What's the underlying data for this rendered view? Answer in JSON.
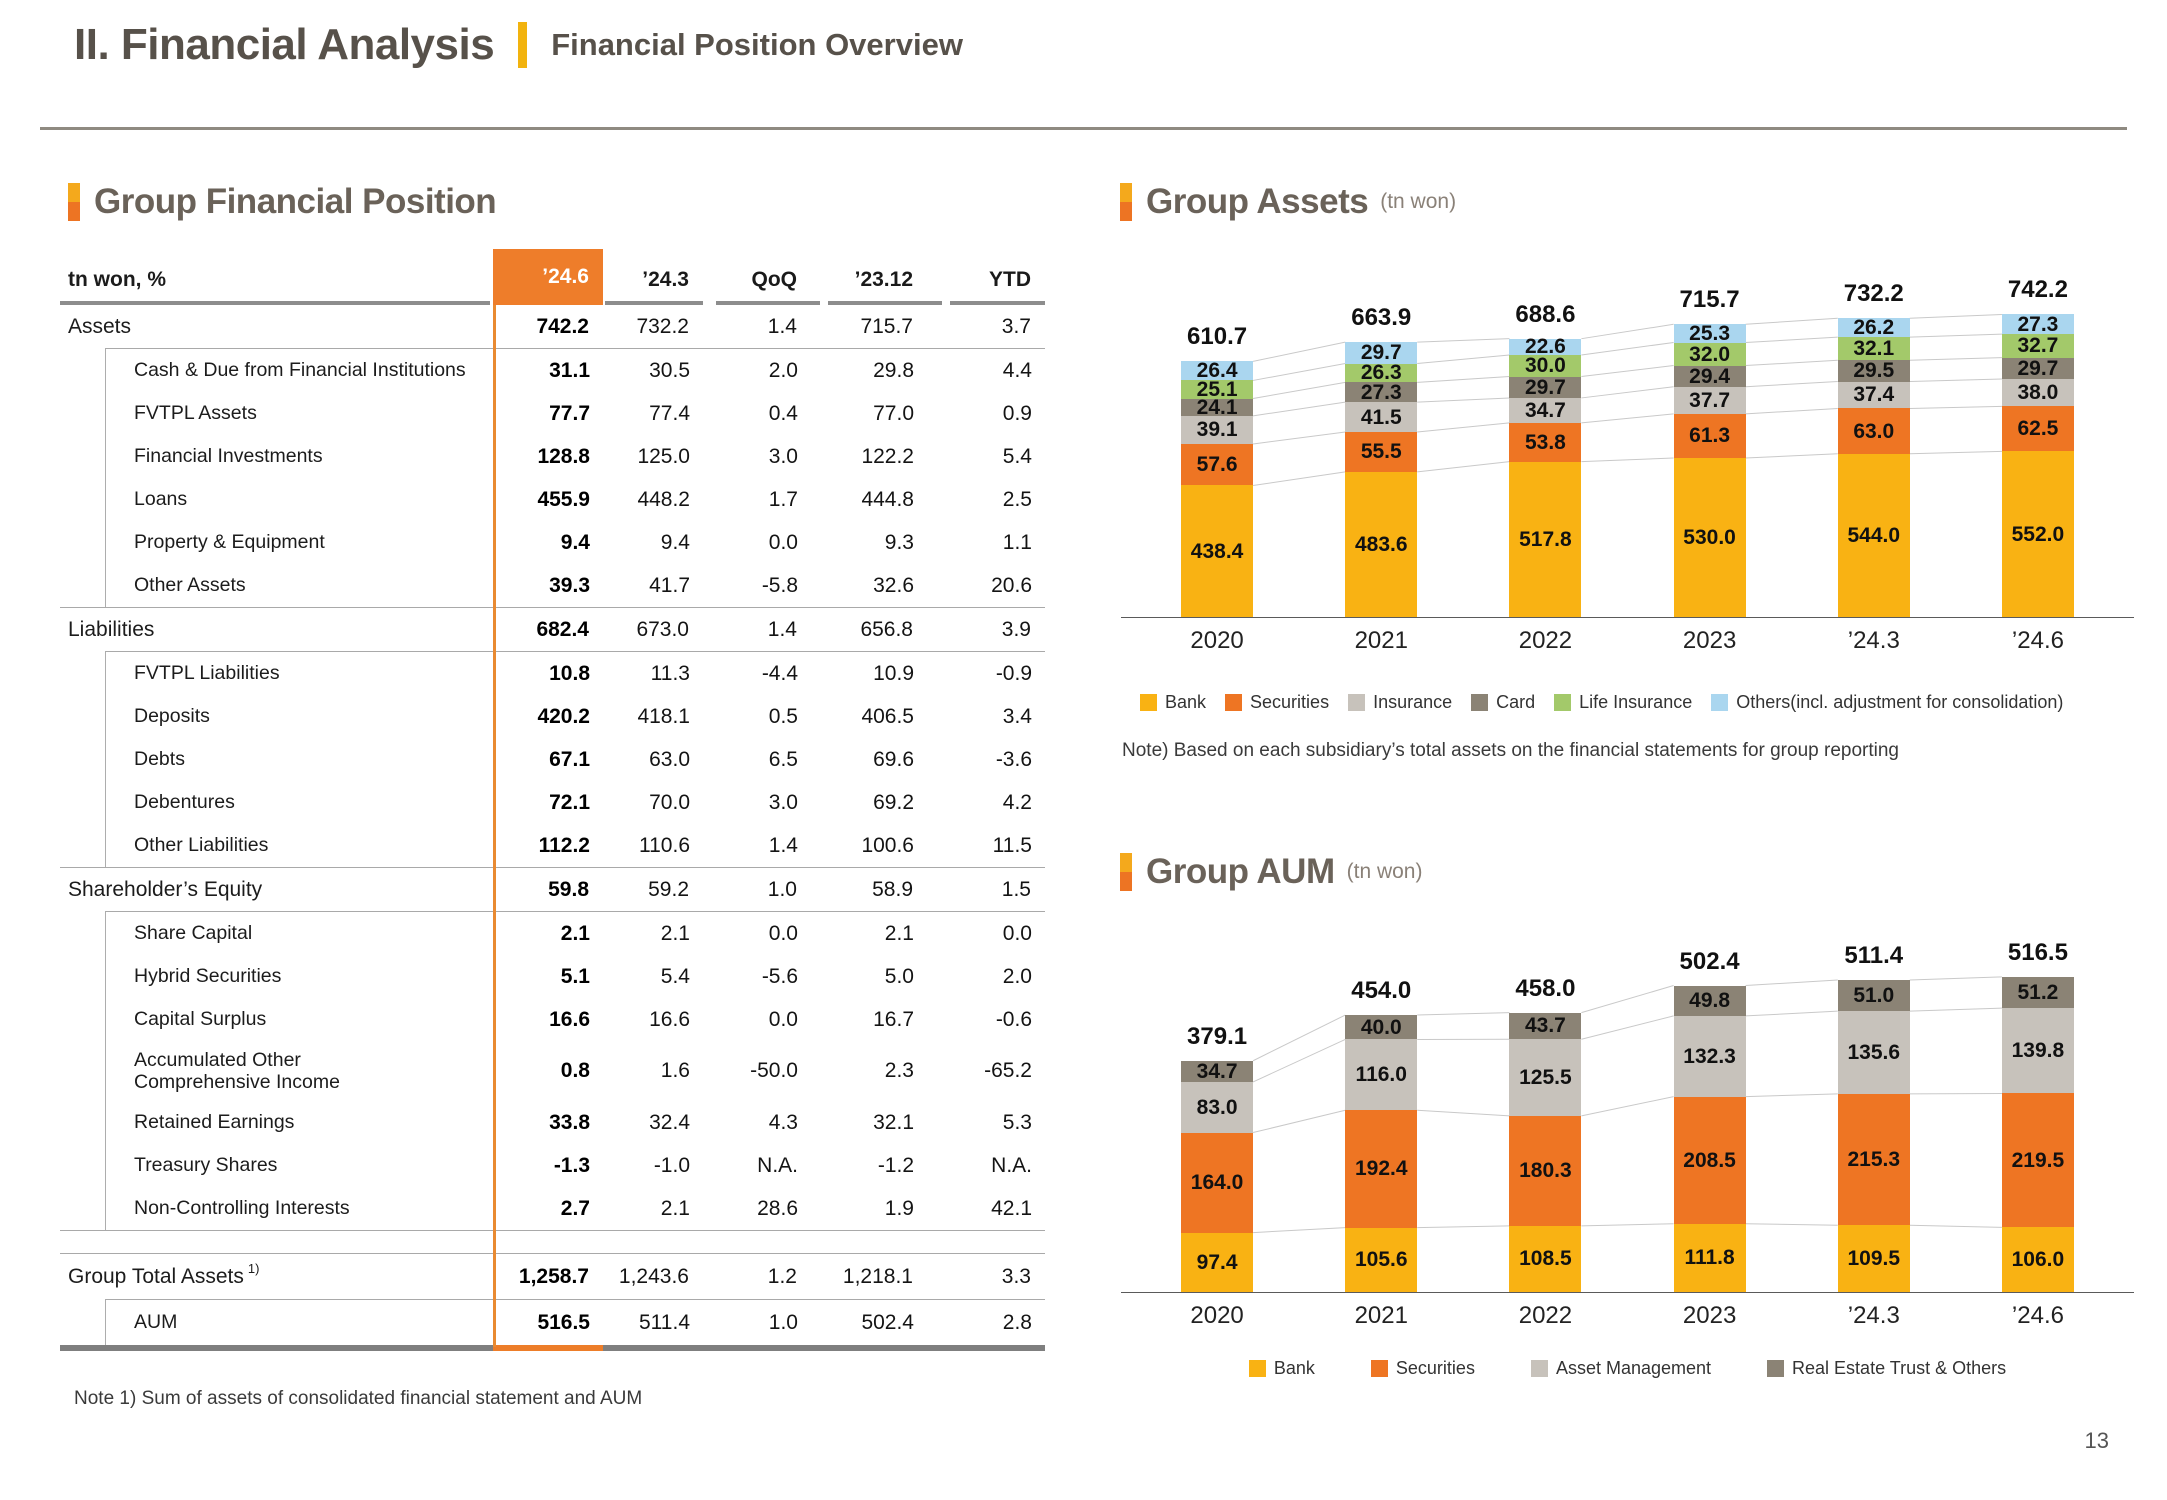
{
  "page": {
    "number": "13"
  },
  "header": {
    "title": "II. Financial Analysis",
    "subtitle": "Financial Position Overview"
  },
  "financial_position": {
    "title": "Group Financial Position",
    "unit_label": "tn won, %",
    "columns": [
      "’24.6",
      "’24.3",
      "QoQ",
      "’23.12",
      "YTD"
    ],
    "sections": [
      {
        "header": {
          "label": "Assets",
          "values": [
            "742.2",
            "732.2",
            "1.4",
            "715.7",
            "3.7"
          ]
        },
        "items": [
          {
            "label": "Cash & Due from Financial Institutions",
            "values": [
              "31.1",
              "30.5",
              "2.0",
              "29.8",
              "4.4"
            ]
          },
          {
            "label": "FVTPL Assets",
            "values": [
              "77.7",
              "77.4",
              "0.4",
              "77.0",
              "0.9"
            ]
          },
          {
            "label": "Financial Investments",
            "values": [
              "128.8",
              "125.0",
              "3.0",
              "122.2",
              "5.4"
            ]
          },
          {
            "label": "Loans",
            "values": [
              "455.9",
              "448.2",
              "1.7",
              "444.8",
              "2.5"
            ]
          },
          {
            "label": "Property & Equipment",
            "values": [
              "9.4",
              "9.4",
              "0.0",
              "9.3",
              "1.1"
            ]
          },
          {
            "label": "Other Assets",
            "values": [
              "39.3",
              "41.7",
              "-5.8",
              "32.6",
              "20.6"
            ]
          }
        ]
      },
      {
        "header": {
          "label": "Liabilities",
          "values": [
            "682.4",
            "673.0",
            "1.4",
            "656.8",
            "3.9"
          ]
        },
        "items": [
          {
            "label": "FVTPL Liabilities",
            "values": [
              "10.8",
              "11.3",
              "-4.4",
              "10.9",
              "-0.9"
            ]
          },
          {
            "label": "Deposits",
            "values": [
              "420.2",
              "418.1",
              "0.5",
              "406.5",
              "3.4"
            ]
          },
          {
            "label": "Debts",
            "values": [
              "67.1",
              "63.0",
              "6.5",
              "69.6",
              "-3.6"
            ]
          },
          {
            "label": "Debentures",
            "values": [
              "72.1",
              "70.0",
              "3.0",
              "69.2",
              "4.2"
            ]
          },
          {
            "label": "Other Liabilities",
            "values": [
              "112.2",
              "110.6",
              "1.4",
              "100.6",
              "11.5"
            ]
          }
        ]
      },
      {
        "header": {
          "label": "Shareholder’s Equity",
          "values": [
            "59.8",
            "59.2",
            "1.0",
            "58.9",
            "1.5"
          ]
        },
        "items": [
          {
            "label": "Share Capital",
            "values": [
              "2.1",
              "2.1",
              "0.0",
              "2.1",
              "0.0"
            ]
          },
          {
            "label": "Hybrid Securities",
            "values": [
              "5.1",
              "5.4",
              "-5.6",
              "5.0",
              "2.0"
            ]
          },
          {
            "label": "Capital Surplus",
            "values": [
              "16.6",
              "16.6",
              "0.0",
              "16.7",
              "-0.6"
            ]
          },
          {
            "label": "Accumulated Other Comprehensive Income",
            "tall": true,
            "values": [
              "0.8",
              "1.6",
              "-50.0",
              "2.3",
              "-65.2"
            ]
          },
          {
            "label": "Retained Earnings",
            "values": [
              "33.8",
              "32.4",
              "4.3",
              "32.1",
              "5.3"
            ]
          },
          {
            "label": "Treasury Shares",
            "values": [
              "-1.3",
              "-1.0",
              "N.A.",
              "-1.2",
              "N.A."
            ]
          },
          {
            "label": "Non-Controlling Interests",
            "values": [
              "2.7",
              "2.1",
              "28.6",
              "1.9",
              "42.1"
            ]
          }
        ]
      }
    ],
    "totals": {
      "group_total": {
        "label": "Group Total Assets",
        "sup": "1)",
        "values": [
          "1,258.7",
          "1,243.6",
          "1.2",
          "1,218.1",
          "3.3"
        ]
      },
      "aum": {
        "label": "AUM",
        "values": [
          "516.5",
          "511.4",
          "1.0",
          "502.4",
          "2.8"
        ]
      }
    },
    "note": "Note 1) Sum of assets of consolidated financial statement and AUM"
  },
  "group_assets": {
    "title": "Group Assets",
    "unit": "(tn won)",
    "note": "Note) Based on each subsidiary’s total assets on the financial statements for group reporting"
  },
  "group_aum": {
    "title": "Group AUM",
    "unit": "(tn won)"
  },
  "chart_data": [
    {
      "id": "group_assets",
      "type": "stacked-bar",
      "title": "Group Assets (tn won)",
      "categories": [
        "2020",
        "2021",
        "2022",
        "2023",
        "’24.3",
        "’24.6"
      ],
      "series": [
        {
          "name": "Bank",
          "color": "#f9b213",
          "values": [
            438.4,
            483.6,
            517.8,
            530.0,
            544.0,
            552.0
          ]
        },
        {
          "name": "Securities",
          "color": "#ee7523",
          "values": [
            57.6,
            55.5,
            53.8,
            61.3,
            63.0,
            62.5
          ]
        },
        {
          "name": "Insurance",
          "color": "#c7c2bb",
          "values": [
            39.1,
            41.5,
            34.7,
            37.7,
            37.4,
            38.0
          ]
        },
        {
          "name": "Card",
          "color": "#8b8375",
          "values": [
            24.1,
            27.3,
            29.7,
            29.4,
            29.5,
            29.7
          ]
        },
        {
          "name": "Life Insurance",
          "color": "#a3c96a",
          "values": [
            25.1,
            26.3,
            30.0,
            32.0,
            32.1,
            32.7
          ]
        },
        {
          "name": "Others(incl. adjustment for consolidation)",
          "color": "#aad6ef",
          "values": [
            26.4,
            29.7,
            22.6,
            25.3,
            26.2,
            27.3
          ]
        }
      ],
      "totals": [
        610.7,
        663.9,
        688.6,
        715.7,
        732.2,
        742.2
      ],
      "legend_position": "bottom"
    },
    {
      "id": "group_aum",
      "type": "stacked-bar",
      "title": "Group AUM (tn won)",
      "categories": [
        "2020",
        "2021",
        "2022",
        "2023",
        "’24.3",
        "’24.6"
      ],
      "series": [
        {
          "name": "Bank",
          "color": "#f9b213",
          "values": [
            97.4,
            105.6,
            108.5,
            111.8,
            109.5,
            106.0
          ]
        },
        {
          "name": "Securities",
          "color": "#ee7523",
          "values": [
            164.0,
            192.4,
            180.3,
            208.5,
            215.3,
            219.5
          ]
        },
        {
          "name": "Asset Management",
          "color": "#c7c2bb",
          "values": [
            83.0,
            116.0,
            125.5,
            132.3,
            135.6,
            139.8
          ]
        },
        {
          "name": "Real Estate Trust & Others",
          "color": "#8b8375",
          "values": [
            34.7,
            40.0,
            43.7,
            49.8,
            51.0,
            51.2
          ]
        }
      ],
      "totals": [
        379.1,
        454.0,
        458.0,
        502.4,
        511.4,
        516.5
      ],
      "legend_position": "bottom"
    }
  ]
}
